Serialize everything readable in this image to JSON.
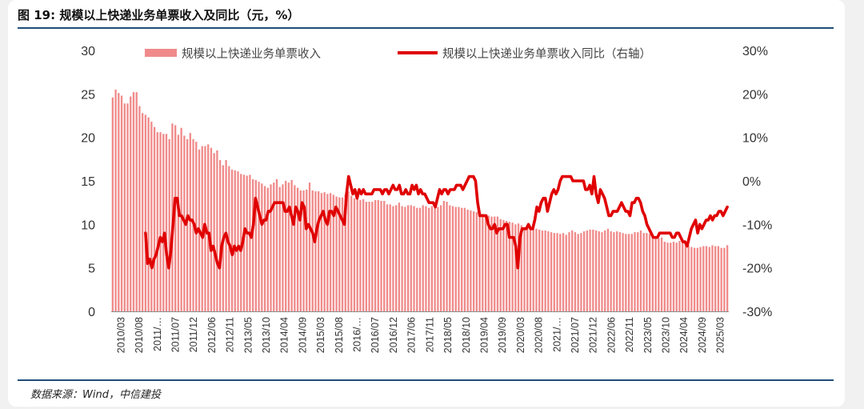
{
  "header": {
    "title": "图 19: 规模以上快递业务单票收入及同比（元，%）"
  },
  "footer": {
    "source": "数据来源：Wind，中信建投"
  },
  "colors": {
    "bar": "#f08a8a",
    "line": "#e00000",
    "rule": "#1f4e79"
  },
  "chart_data": {
    "type": "bar+line",
    "legend": {
      "bar_label": "规模以上快递业务单票收入",
      "line_label": "规模以上快递业务单票收入同比（右轴）",
      "placement": "top"
    },
    "y_left": {
      "ticks": [
        "30",
        "25",
        "20",
        "15",
        "10",
        "5",
        "0"
      ],
      "range": [
        0,
        30
      ]
    },
    "y_right": {
      "ticks": [
        "30%",
        "20%",
        "10%",
        "0%",
        "-10%",
        "-20%",
        "-30%"
      ],
      "range": [
        -30,
        30
      ]
    },
    "x_tick_labels": [
      "2010/03",
      "2010/08",
      "2011/…",
      "2011/07",
      "2011/12",
      "2012/06",
      "2012/11",
      "2013/05",
      "2013/10",
      "2014/04",
      "2014/09",
      "2015/03",
      "2015/08",
      "2016/…",
      "2016/07",
      "2016/12",
      "2017/06",
      "2017/11",
      "2018/05",
      "2018/10",
      "2019/04",
      "2019/09",
      "2020/03",
      "2020/08",
      "2021/…",
      "2021/07",
      "2021/12",
      "2022/06",
      "2022/11",
      "2023/05",
      "2023/10",
      "2024/04",
      "2024/09",
      "2025/03"
    ],
    "series": [
      {
        "name": "规模以上快递业务单票收入",
        "kind": "bar",
        "axis": "left",
        "values": [
          24.6,
          25.5,
          25.1,
          24.8,
          23.9,
          23.9,
          24.7,
          25.2,
          25.2,
          23.6,
          22.8,
          22.6,
          22.3,
          21.8,
          21.2,
          20.6,
          20.6,
          20.4,
          20.4,
          19.8,
          21.6,
          21.4,
          20.3,
          21.1,
          20.2,
          19.8,
          20.5,
          19.8,
          19.5,
          18.6,
          19.0,
          19.0,
          19.2,
          18.8,
          18.2,
          18.5,
          17.4,
          16.8,
          17.4,
          16.7,
          16.3,
          16.2,
          16.1,
          15.8,
          15.7,
          15.6,
          15.7,
          15.2,
          15.1,
          14.9,
          14.7,
          14.4,
          14.2,
          14.6,
          14.8,
          15.2,
          14.3,
          14.6,
          15.0,
          14.8,
          15.1,
          14.5,
          14.2,
          13.9,
          13.9,
          14.0,
          14.8,
          13.9,
          13.8,
          13.8,
          13.6,
          13.7,
          13.5,
          13.6,
          13.4,
          13.2,
          13.1,
          13.1,
          13.4,
          13.8,
          13.3,
          13.0,
          13.1,
          12.8,
          12.9,
          12.6,
          12.6,
          12.6,
          12.8,
          12.8,
          12.7,
          12.7,
          12.3,
          12.3,
          12.1,
          12.2,
          12.5,
          12.1,
          12.0,
          12.2,
          12.2,
          12.1,
          11.9,
          11.9,
          12.2,
          12.1,
          11.9,
          12.1,
          12.2,
          12.0,
          12.2,
          12.7,
          12.6,
          12.2,
          12.1,
          12.0,
          12.0,
          11.9,
          11.9,
          11.7,
          11.6,
          11.5,
          11.4,
          11.4,
          11.2,
          11.1,
          11.0,
          10.9,
          10.9,
          10.9,
          10.6,
          10.5,
          10.4,
          10.3,
          10.2,
          10.0,
          10.1,
          9.9,
          9.7,
          9.6,
          9.5,
          9.5,
          9.5,
          9.4,
          9.3,
          9.3,
          9.2,
          9.1,
          9.0,
          9.0,
          8.9,
          9.0,
          8.8,
          9.1,
          9.3,
          9.1,
          8.9,
          9.0,
          9.2,
          9.3,
          9.4,
          9.4,
          9.3,
          9.2,
          9.1,
          9.3,
          9.5,
          9.2,
          9.1,
          9.2,
          9.1,
          9.0,
          8.9,
          8.9,
          8.9,
          9.1,
          9.1,
          9.3,
          9.0,
          9.0,
          8.9,
          8.8,
          8.6,
          8.4,
          8.5,
          8.0,
          7.9,
          7.9,
          8.0,
          7.9,
          8.1,
          7.9,
          7.6,
          7.6,
          7.4,
          7.3,
          7.3,
          7.4,
          7.5,
          7.5,
          7.4,
          7.6,
          7.5,
          7.5,
          7.3,
          7.3,
          7.6
        ]
      },
      {
        "name": "规模以上快递业务单票收入同比（右轴）",
        "kind": "line",
        "axis": "right",
        "start_index": 11,
        "values": [
          -12,
          -19,
          -18,
          -20,
          -18,
          -17,
          -15,
          -13,
          -14,
          -12,
          -17,
          -20,
          -16,
          -10,
          -4,
          -4,
          -8,
          -8,
          -9,
          -10,
          -8,
          -9,
          -9,
          -10,
          -12,
          -11,
          -12,
          -13,
          -10,
          -12,
          -12,
          -16,
          -15,
          -17,
          -19,
          -20,
          -15,
          -13,
          -12,
          -14,
          -15,
          -17,
          -15,
          -16,
          -15,
          -16,
          -14,
          -11,
          -12,
          -12,
          -13,
          -10,
          -4,
          -6,
          -8,
          -10,
          -9,
          -9,
          -7,
          -7,
          -6,
          -5,
          -5,
          -5,
          -5,
          -5,
          -7,
          -7,
          -6,
          -8,
          -10,
          -6,
          -7,
          -9,
          -5,
          -6,
          -11,
          -10,
          -11,
          -12,
          -14,
          -11,
          -9,
          -8,
          -7,
          -9,
          -10,
          -7,
          -7,
          -8,
          -6,
          -7,
          -8,
          -9,
          -10,
          -3,
          1,
          -1,
          -3,
          -2,
          -4,
          -2,
          -3,
          -2,
          -3,
          -3,
          -3,
          -3,
          -2,
          -2,
          -2,
          -2,
          -3,
          -2,
          -2,
          -3,
          -2,
          -1,
          -2,
          -2,
          -1,
          -3,
          -3,
          -2,
          -3,
          -3,
          -1,
          -2,
          -1,
          -3,
          -2,
          -3,
          -3,
          -4,
          -5,
          -5,
          -5,
          -6,
          -4,
          -2,
          -3,
          -2,
          -2,
          -3,
          -2,
          -2,
          -2,
          -1,
          -1,
          -1,
          -2,
          -1,
          0,
          1,
          1,
          1,
          0,
          -5,
          -8,
          -8,
          -8,
          -8,
          -10,
          -11,
          -11,
          -10,
          -12,
          -11,
          -11,
          -11,
          -10,
          -10,
          -13,
          -13,
          -13,
          -15,
          -20,
          -13,
          -11,
          -11,
          -11,
          -10,
          -11,
          -11,
          -9,
          -6,
          -7,
          -5,
          -4,
          -4,
          -7,
          -5,
          -3,
          -2,
          -3,
          -2,
          0,
          1,
          1,
          1,
          1,
          1,
          0,
          0,
          0,
          0,
          0,
          0,
          -2,
          -2,
          -1,
          -3,
          1,
          -3,
          -5,
          -2,
          -3,
          -4,
          -6,
          -8,
          -8,
          -7,
          -7,
          -7,
          -6,
          -5,
          -6,
          -7,
          -7,
          -8,
          -5,
          -5,
          -4,
          -4,
          -5,
          -7,
          -8,
          -10,
          -11,
          -12,
          -13,
          -13,
          -13,
          -12,
          -12,
          -12,
          -12,
          -12,
          -12,
          -13,
          -13,
          -12,
          -12,
          -13,
          -14,
          -14,
          -15,
          -13,
          -11,
          -10,
          -9,
          -12,
          -10,
          -11,
          -10,
          -9,
          -9,
          -8,
          -9,
          -8,
          -8,
          -7,
          -7,
          -8,
          -7,
          -6
        ]
      }
    ]
  }
}
